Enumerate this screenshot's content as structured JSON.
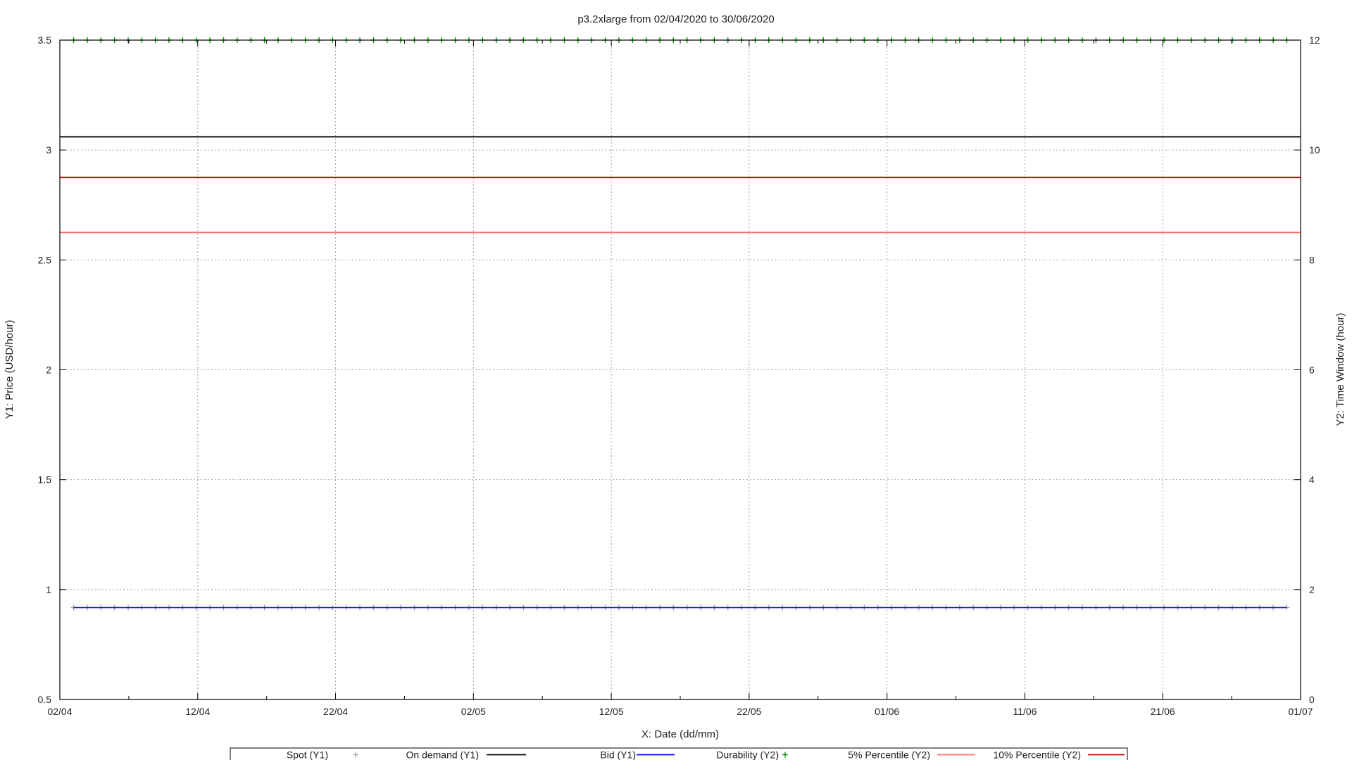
{
  "chart_data": {
    "type": "line",
    "title": "p3.2xlarge from 02/04/2020 to 30/06/2020",
    "xlabel": "X: Date (dd/mm)",
    "ylabel": "Y1: Price (USD/hour)",
    "y2label": "Y2: Time Window (hour)",
    "x_start": "2020-04-02",
    "x_end": "2020-07-01",
    "x_ticks": [
      {
        "date": "2020-04-02",
        "label": "02/04"
      },
      {
        "date": "2020-04-12",
        "label": "12/04"
      },
      {
        "date": "2020-04-22",
        "label": "22/04"
      },
      {
        "date": "2020-05-02",
        "label": "02/05"
      },
      {
        "date": "2020-05-12",
        "label": "12/05"
      },
      {
        "date": "2020-05-22",
        "label": "22/05"
      },
      {
        "date": "2020-06-01",
        "label": "01/06"
      },
      {
        "date": "2020-06-11",
        "label": "11/06"
      },
      {
        "date": "2020-06-21",
        "label": "21/06"
      },
      {
        "date": "2020-07-01",
        "label": "01/07"
      }
    ],
    "ylim": [
      0.5,
      3.5
    ],
    "y_ticks": [
      "0.5",
      "1",
      "1.5",
      "2",
      "2.5",
      "3",
      "3.5"
    ],
    "y2lim": [
      0,
      12
    ],
    "y2_ticks": [
      "0",
      "2",
      "4",
      "6",
      "8",
      "10",
      "12"
    ],
    "grid": true,
    "legend_position": "bottom",
    "series": [
      {
        "name": "Spot (Y1)",
        "axis": "y1",
        "style": "points",
        "marker": "+",
        "color": "#9e9e9e",
        "start": "2020-04-03",
        "end": "2020-06-30",
        "value": 0.918
      },
      {
        "name": "On demand (Y1)",
        "axis": "y1",
        "style": "line",
        "color": "#000000",
        "value": 3.06
      },
      {
        "name": "Bid (Y1)",
        "axis": "y1",
        "style": "line",
        "color": "#0000ff",
        "start": "2020-04-03",
        "end": "2020-06-30",
        "value": 0.918
      },
      {
        "name": "Durability (Y2)",
        "axis": "y2",
        "style": "points",
        "marker": "+",
        "color": "#008000",
        "start": "2020-04-03",
        "end": "2020-06-30",
        "value": 12
      },
      {
        "name": "5% Percentile (Y2)",
        "axis": "y2",
        "style": "line",
        "color": "#ff6b6b",
        "value": 8.5
      },
      {
        "name": "10% Percentile (Y2)",
        "axis": "y2",
        "style": "line",
        "color": "#c00000",
        "value": 9.5
      }
    ]
  }
}
